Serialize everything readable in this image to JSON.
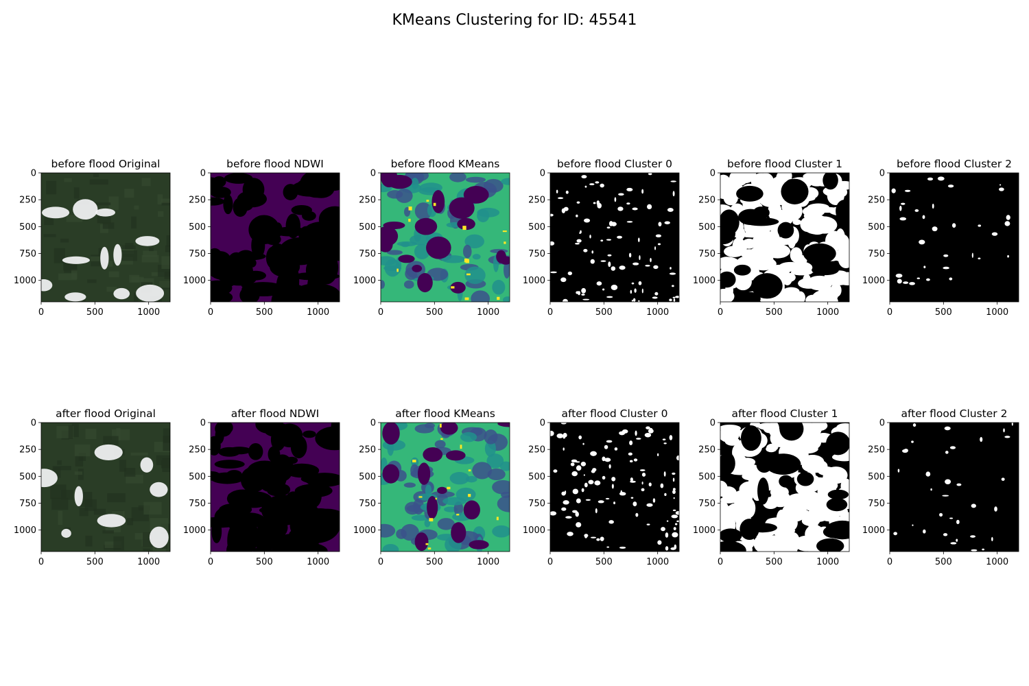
{
  "figure": {
    "title": "KMeans Clustering for ID: 45541"
  },
  "chart_data": {
    "type": "image-grid",
    "title": "KMeans Clustering for ID: 45541",
    "rows": 2,
    "cols": 6,
    "image_extent": [
      0,
      1200
    ],
    "ticks": [
      0,
      500,
      1000
    ],
    "y_ticks": [
      0,
      250,
      500,
      750,
      1000
    ],
    "x_ticks": [
      0,
      500,
      1000
    ],
    "y_inverted": true,
    "colors": {
      "viridis_low": "#440154",
      "viridis_mid": "#3b528b",
      "viridis_cyan": "#21918c",
      "viridis_green": "#35b779",
      "viridis_high": "#fde725",
      "mask_on": "#ffffff",
      "mask_off": "#000000",
      "forest": "#2a3d26",
      "cloud": "#f4f4f6"
    },
    "panels": [
      {
        "title": "before flood Original",
        "kind": "rgb",
        "seed": 11,
        "cloud": 0.18
      },
      {
        "title": "before flood NDWI",
        "kind": "ndwi",
        "seed": 12,
        "mask": 0.55
      },
      {
        "title": "before flood KMeans",
        "kind": "kmeans",
        "seed": 13,
        "mask": 0.3
      },
      {
        "title": "before flood Cluster 0",
        "kind": "mask",
        "seed": 14,
        "fill": 0.28
      },
      {
        "title": "before flood Cluster 1",
        "kind": "mask",
        "seed": 15,
        "fill": 0.62
      },
      {
        "title": "before flood Cluster 2",
        "kind": "mask",
        "seed": 16,
        "fill": 0.05
      },
      {
        "title": "after flood Original",
        "kind": "rgb",
        "seed": 21,
        "cloud": 0.06
      },
      {
        "title": "after flood NDWI",
        "kind": "ndwi",
        "seed": 22,
        "mask": 0.62
      },
      {
        "title": "after flood KMeans",
        "kind": "kmeans",
        "seed": 23,
        "mask": 0.18
      },
      {
        "title": "after flood Cluster 0",
        "kind": "mask",
        "seed": 24,
        "fill": 0.36
      },
      {
        "title": "after flood Cluster 1",
        "kind": "mask",
        "seed": 25,
        "fill": 0.58
      },
      {
        "title": "after flood Cluster 2",
        "kind": "mask",
        "seed": 26,
        "fill": 0.05
      }
    ]
  }
}
